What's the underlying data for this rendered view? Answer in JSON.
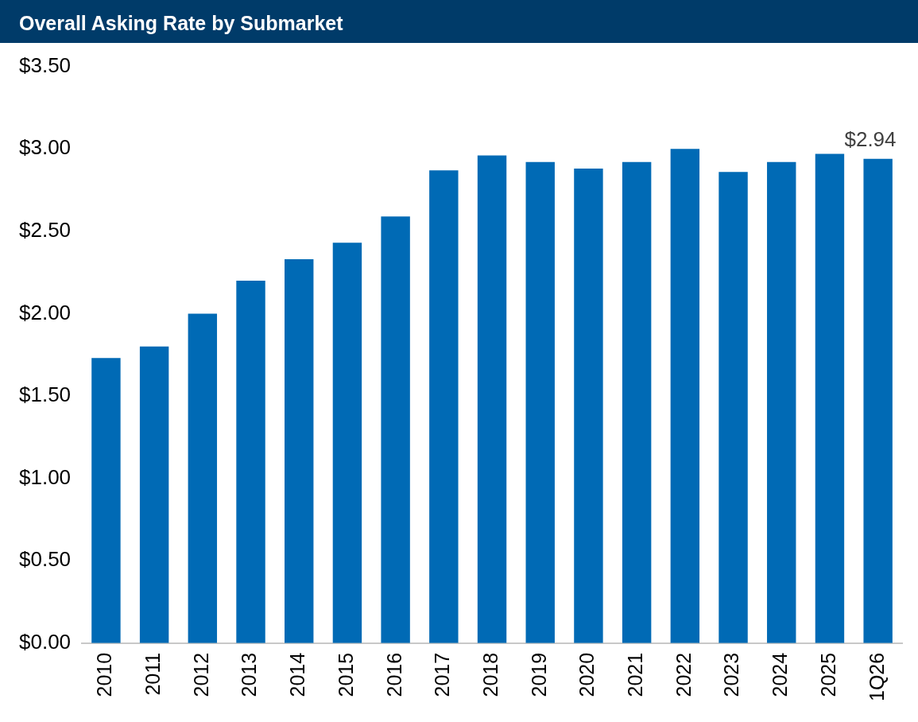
{
  "chart_data": {
    "type": "bar",
    "title": "Overall Asking Rate by Submarket",
    "categories": [
      "2010",
      "2011",
      "2012",
      "2013",
      "2014",
      "2015",
      "2016",
      "2017",
      "2018",
      "2019",
      "2020",
      "2021",
      "2022",
      "2023",
      "2024",
      "2025",
      "1Q26"
    ],
    "values": [
      1.73,
      1.8,
      2.0,
      2.2,
      2.33,
      2.43,
      2.59,
      2.87,
      2.96,
      2.92,
      2.88,
      2.92,
      3.0,
      2.86,
      2.92,
      2.97,
      2.94
    ],
    "value_labels": [
      null,
      null,
      null,
      null,
      null,
      null,
      null,
      null,
      null,
      null,
      null,
      null,
      null,
      null,
      null,
      null,
      "$2.94"
    ],
    "color": "#006ab5",
    "ylim": [
      0,
      3.5
    ],
    "yticks": [
      {
        "value": 0,
        "label": "$0.00"
      },
      {
        "value": 0.5,
        "label": "$0.50"
      },
      {
        "value": 1,
        "label": "$1.00"
      },
      {
        "value": 1.5,
        "label": "$1.50"
      },
      {
        "value": 2,
        "label": "$2.00"
      },
      {
        "value": 2.5,
        "label": "$2.50"
      },
      {
        "value": 3,
        "label": "$3.00"
      },
      {
        "value": 3.5,
        "label": "$3.50"
      }
    ],
    "grid": false,
    "legend": false
  }
}
